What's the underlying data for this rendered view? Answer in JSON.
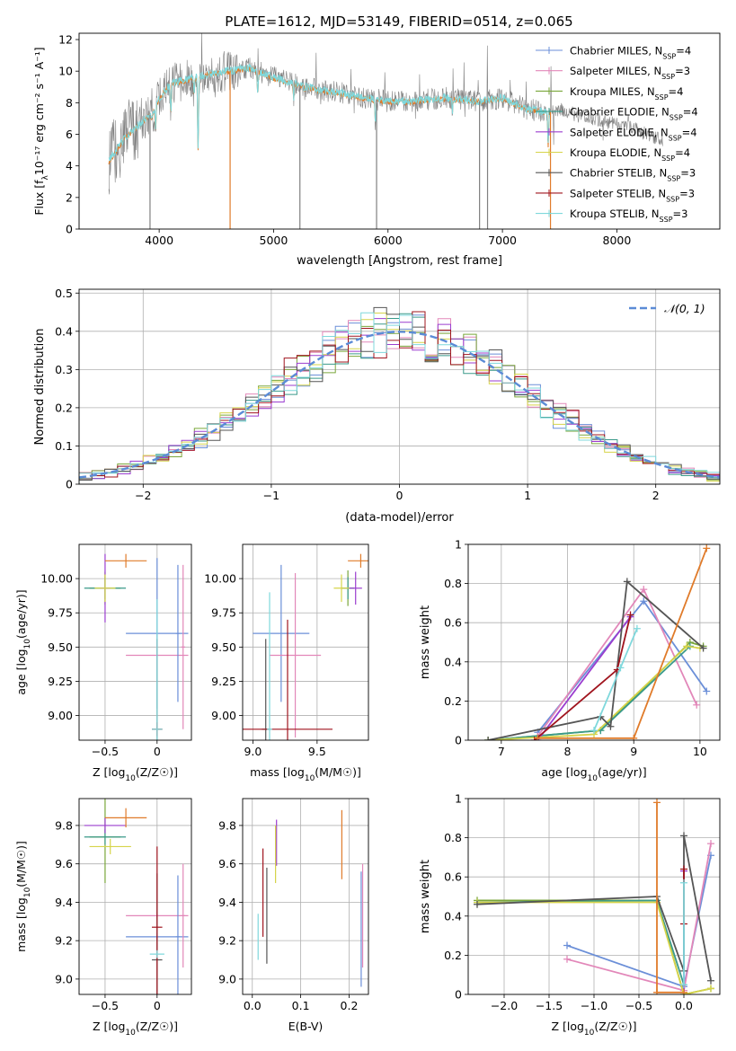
{
  "figure": {
    "title": "PLATE=1612, MJD=53149, FIBERID=0514, z=0.065"
  },
  "series_styles": [
    {
      "name": "Chabrier MILES",
      "nssp": "4",
      "color": "#6b8fd8"
    },
    {
      "name": "Salpeter MILES",
      "nssp": "3",
      "color": "#e287b9"
    },
    {
      "name": "Kroupa MILES",
      "nssp": "4",
      "color": "#7aa63b"
    },
    {
      "name": "Chabrier ELODIE",
      "nssp": "4",
      "color": "#3a9a8a"
    },
    {
      "name": "Salpeter ELODIE",
      "nssp": "4",
      "color": "#9b3dcf"
    },
    {
      "name": "Kroupa ELODIE",
      "nssp": "4",
      "color": "#d6d44a"
    },
    {
      "name": "Chabrier STELIB",
      "nssp": "3",
      "color": "#555555"
    },
    {
      "name": "Salpeter STELIB",
      "nssp": "3",
      "color": "#a0141e"
    },
    {
      "name": "Kroupa STELIB",
      "nssp": "3",
      "color": "#7fd8dc"
    }
  ],
  "chart_data": [
    {
      "id": "spectrum",
      "type": "line",
      "xlabel": "wavelength [Angstrom, rest frame]",
      "ylabel_main": "Flux [f",
      "ylabel_sub": "λ",
      "ylabel_rest": "10⁻¹⁷ erg cm⁻² s⁻¹ A⁻¹]",
      "xlim": [
        3300,
        8900
      ],
      "ylim": [
        0,
        12.4
      ],
      "xticks": [
        4000,
        5000,
        6000,
        7000,
        8000
      ],
      "yticks": [
        0,
        2,
        4,
        6,
        8,
        10,
        12
      ],
      "legend_position": "top-right",
      "legend_suffix": "N",
      "legend_sub": "SSP",
      "data_color": "#808080",
      "model_color": "#7fd8dc",
      "accent_color": "#e07b2a",
      "anchors": [
        [
          3560,
          4.3
        ],
        [
          3700,
          5.8
        ],
        [
          3850,
          6.8
        ],
        [
          3950,
          7.4
        ],
        [
          4000,
          8.3
        ],
        [
          4100,
          9.2
        ],
        [
          4300,
          9.6
        ],
        [
          4500,
          9.9
        ],
        [
          4800,
          10.2
        ],
        [
          5000,
          9.6
        ],
        [
          5200,
          9.2
        ],
        [
          5400,
          8.8
        ],
        [
          5600,
          8.6
        ],
        [
          5800,
          8.3
        ],
        [
          6000,
          8.1
        ],
        [
          6200,
          8.1
        ],
        [
          6500,
          8.3
        ],
        [
          6800,
          8.1
        ],
        [
          7000,
          8.3
        ],
        [
          7200,
          7.6
        ],
        [
          7420,
          7.4
        ],
        [
          7500,
          7.6
        ],
        [
          7700,
          7.1
        ],
        [
          7900,
          6.8
        ],
        [
          8100,
          6.5
        ],
        [
          8300,
          5.9
        ],
        [
          8400,
          5.6
        ]
      ],
      "absorption_lines": [
        [
          3934,
          7.1
        ],
        [
          3969,
          6.4
        ],
        [
          4102,
          7.3
        ],
        [
          4305,
          8.5
        ],
        [
          4340,
          5.0
        ],
        [
          4861,
          8.6
        ],
        [
          5175,
          8.3
        ],
        [
          5270,
          8.6
        ],
        [
          5890,
          6.8
        ],
        [
          6563,
          7.5
        ],
        [
          7400,
          5.4
        ]
      ],
      "spikes": [
        [
          3920,
          0
        ],
        [
          4620,
          0
        ],
        [
          5230,
          0
        ],
        [
          5900,
          0
        ],
        [
          6800,
          0
        ],
        [
          6870,
          0
        ],
        [
          7420,
          0
        ]
      ]
    },
    {
      "id": "residuals",
      "type": "bar",
      "xlabel": "(data-model)/error",
      "ylabel": "Normed distribution",
      "xlim": [
        -2.5,
        2.5
      ],
      "ylim": [
        0,
        0.51
      ],
      "xticks": [
        -2,
        -1,
        0,
        1,
        2
      ],
      "yticks": [
        0.0,
        0.1,
        0.2,
        0.3,
        0.4,
        0.5
      ],
      "legend_entry": "𝒩(0, 1)",
      "legend_position": "top-right",
      "gaussian_color": "#5b8bd6",
      "bin_width": 0.1,
      "grid": true
    },
    {
      "id": "age_vs_Z",
      "type": "scatter",
      "xlabel_main": "Z [log",
      "xlabel_sub": "10",
      "xlabel_rest": "(Z/Z☉)]",
      "ylabel_main": "age  [log",
      "ylabel_sub": "10",
      "ylabel_rest": "(age/yr)]",
      "xlim": [
        -0.75,
        0.33
      ],
      "ylim": [
        8.82,
        10.25
      ],
      "xticks": [
        -0.5,
        0.0
      ],
      "ytick_labels": [
        "9.00",
        "9.25",
        "9.50",
        "9.75",
        "10.00"
      ],
      "yticks": [
        9.0,
        9.25,
        9.5,
        9.75,
        10.0
      ],
      "points": [
        {
          "x": 0.0,
          "y": 9.6,
          "xerr": 0.3,
          "yerr": 0.55,
          "color": "#6b8fd8"
        },
        {
          "x": 0.0,
          "y": 9.44,
          "xerr": 0.3,
          "yerr": 0.1,
          "color": "#e287b9"
        },
        {
          "x": -0.5,
          "y": 9.93,
          "xerr": 0.15,
          "yerr": 0.12,
          "color": "#7aa63b"
        },
        {
          "x": -0.5,
          "y": 9.93,
          "xerr": 0.2,
          "yerr": 0.08,
          "color": "#3a9a8a"
        },
        {
          "x": -0.5,
          "y": 9.93,
          "xerr": 0.05,
          "yerr": 0.25,
          "color": "#9b3dcf"
        },
        {
          "x": -0.5,
          "y": 9.93,
          "xerr": 0.1,
          "yerr": 0.1,
          "color": "#d6d44a"
        },
        {
          "x": 0.0,
          "y": 8.9,
          "xerr": 0.05,
          "yerr": 0.66,
          "color": "#555555"
        },
        {
          "x": 0.0,
          "y": 8.9,
          "xerr": 0.05,
          "yerr": 0.05,
          "color": "#a0141e"
        },
        {
          "x": 0.0,
          "y": 8.9,
          "xerr": 0.05,
          "yerr": 0.95,
          "color": "#7fd8dc"
        },
        {
          "x": -0.3,
          "y": 10.13,
          "xerr": 0.2,
          "yerr": 0.05,
          "color": "#e07b2a"
        },
        {
          "x": 0.2,
          "y": 9.6,
          "xerr": 0.02,
          "yerr": 0.5,
          "color": "#6b8fd8"
        },
        {
          "x": 0.25,
          "y": 9.5,
          "xerr": 0.02,
          "yerr": 0.6,
          "color": "#e287b9"
        }
      ]
    },
    {
      "id": "age_vs_mass",
      "type": "scatter",
      "xlabel_main": "mass [log",
      "xlabel_sub": "10",
      "xlabel_rest": "(M/M☉)]",
      "ylabel_main": "",
      "ylabel_sub": "",
      "ylabel_rest": "",
      "xlim": [
        8.92,
        9.9
      ],
      "ylim": [
        8.82,
        10.25
      ],
      "xticks": [
        9.0,
        9.5
      ],
      "xtick_labels": [
        "9.0",
        "9.5"
      ],
      "yticks": [
        9.0,
        9.25,
        9.5,
        9.75,
        10.0
      ],
      "ytick_labels": [
        "9.00",
        "9.25",
        "9.50",
        "9.75",
        "10.00"
      ],
      "points": [
        {
          "x": 9.22,
          "y": 9.6,
          "xerr": 0.22,
          "yerr": 0.5,
          "color": "#6b8fd8"
        },
        {
          "x": 9.33,
          "y": 9.44,
          "xerr": 0.2,
          "yerr": 0.6,
          "color": "#e287b9"
        },
        {
          "x": 9.74,
          "y": 9.93,
          "xerr": 0.05,
          "yerr": 0.13,
          "color": "#7aa63b"
        },
        {
          "x": 9.74,
          "y": 9.93,
          "xerr": 0.05,
          "yerr": 0.08,
          "color": "#3a9a8a"
        },
        {
          "x": 9.8,
          "y": 9.93,
          "xerr": 0.05,
          "yerr": 0.12,
          "color": "#9b3dcf"
        },
        {
          "x": 9.69,
          "y": 9.93,
          "xerr": 0.06,
          "yerr": 0.1,
          "color": "#d6d44a"
        },
        {
          "x": 9.1,
          "y": 8.9,
          "xerr": 0.03,
          "yerr": 0.66,
          "color": "#555555"
        },
        {
          "x": 9.27,
          "y": 8.9,
          "xerr": 0.35,
          "yerr": 0.8,
          "color": "#a0141e"
        },
        {
          "x": 9.13,
          "y": 8.9,
          "xerr": 0.02,
          "yerr": 1.0,
          "color": "#7fd8dc"
        },
        {
          "x": 9.84,
          "y": 10.13,
          "xerr": 0.1,
          "yerr": 0.05,
          "color": "#e07b2a"
        }
      ]
    },
    {
      "id": "massweight_vs_age",
      "type": "line",
      "xlabel_main": "age  [log",
      "xlabel_sub": "10",
      "xlabel_rest": "(age/yr)]",
      "ylabel": "mass weight",
      "xlim": [
        6.5,
        10.3
      ],
      "ylim": [
        0,
        1.0
      ],
      "xticks": [
        7,
        8,
        9,
        10
      ],
      "yticks": [
        0.0,
        0.2,
        0.4,
        0.6,
        0.8,
        1.0
      ],
      "series": [
        {
          "color": "#6b8fd8",
          "x": [
            7.55,
            9.15,
            10.1
          ],
          "y": [
            0.04,
            0.71,
            0.25
          ]
        },
        {
          "color": "#e287b9",
          "x": [
            7.55,
            9.15,
            9.95
          ],
          "y": [
            0.02,
            0.77,
            0.18
          ]
        },
        {
          "color": "#7aa63b",
          "x": [
            6.8,
            8.5,
            9.85,
            10.05
          ],
          "y": [
            0.0,
            0.05,
            0.5,
            0.48
          ]
        },
        {
          "color": "#3a9a8a",
          "x": [
            6.8,
            8.5,
            9.85
          ],
          "y": [
            0.0,
            0.05,
            0.48
          ]
        },
        {
          "color": "#9b3dcf",
          "x": [
            7.55,
            8.95
          ],
          "y": [
            0.0,
            0.63
          ]
        },
        {
          "color": "#d6d44a",
          "x": [
            6.8,
            8.4,
            9.8,
            10.0
          ],
          "y": [
            0.0,
            0.03,
            0.48,
            0.47
          ]
        },
        {
          "color": "#555555",
          "x": [
            6.8,
            8.5,
            8.65,
            8.9,
            10.05
          ],
          "y": [
            0.0,
            0.12,
            0.07,
            0.81,
            0.47
          ]
        },
        {
          "color": "#a0141e",
          "x": [
            7.5,
            8.75,
            8.95
          ],
          "y": [
            0.0,
            0.36,
            0.64
          ]
        },
        {
          "color": "#7fd8dc",
          "x": [
            8.4,
            8.8,
            9.05
          ],
          "y": [
            0.05,
            0.37,
            0.57
          ]
        },
        {
          "color": "#e07b2a",
          "x": [
            7.55,
            9.0,
            10.1
          ],
          "y": [
            0.01,
            0.01,
            0.98
          ]
        }
      ]
    },
    {
      "id": "mass_vs_Z",
      "type": "scatter",
      "xlabel_main": "Z [log",
      "xlabel_sub": "10",
      "xlabel_rest": "(Z/Z☉)]",
      "ylabel_main": "mass [log",
      "ylabel_sub": "10",
      "ylabel_rest": "(M/M☉)]",
      "xlim": [
        -0.75,
        0.33
      ],
      "ylim": [
        8.92,
        9.94
      ],
      "xticks": [
        -0.5,
        0.0
      ],
      "yticks": [
        9.0,
        9.2,
        9.4,
        9.6,
        9.8
      ],
      "ytick_labels": [
        "9.0",
        "9.2",
        "9.4",
        "9.6",
        "9.8"
      ],
      "points": [
        {
          "x": 0.0,
          "y": 9.22,
          "xerr": 0.3,
          "yerr": 0.02,
          "color": "#6b8fd8"
        },
        {
          "x": 0.0,
          "y": 9.33,
          "xerr": 0.3,
          "yerr": 0.02,
          "color": "#e287b9"
        },
        {
          "x": -0.5,
          "y": 9.74,
          "xerr": 0.15,
          "yerr": 0.24,
          "color": "#7aa63b"
        },
        {
          "x": -0.5,
          "y": 9.74,
          "xerr": 0.2,
          "yerr": 0.04,
          "color": "#3a9a8a"
        },
        {
          "x": -0.5,
          "y": 9.8,
          "xerr": 0.2,
          "yerr": 0.04,
          "color": "#9b3dcf"
        },
        {
          "x": -0.45,
          "y": 9.69,
          "xerr": 0.2,
          "yerr": 0.04,
          "color": "#d6d44a"
        },
        {
          "x": 0.0,
          "y": 9.1,
          "xerr": 0.05,
          "yerr": 0.45,
          "color": "#555555"
        },
        {
          "x": 0.0,
          "y": 9.27,
          "xerr": 0.05,
          "yerr": 0.42,
          "color": "#a0141e"
        },
        {
          "x": 0.0,
          "y": 9.13,
          "xerr": 0.07,
          "yerr": 0.02,
          "color": "#7fd8dc"
        },
        {
          "x": -0.3,
          "y": 9.84,
          "xerr": 0.2,
          "yerr": 0.05,
          "color": "#e07b2a"
        },
        {
          "x": 0.2,
          "y": 9.22,
          "xerr": 0.02,
          "yerr": 0.32,
          "color": "#6b8fd8"
        },
        {
          "x": 0.25,
          "y": 9.33,
          "xerr": 0.02,
          "yerr": 0.27,
          "color": "#e287b9"
        }
      ]
    },
    {
      "id": "mass_vs_ebv",
      "type": "scatter",
      "xlabel_main": "E(B-V)",
      "xlabel_sub": "",
      "xlabel_rest": "",
      "ylabel_main": "",
      "ylabel_sub": "",
      "ylabel_rest": "",
      "xlim": [
        -0.02,
        0.24
      ],
      "ylim": [
        8.92,
        9.94
      ],
      "xticks": [
        0.0,
        0.1,
        0.2
      ],
      "xtick_labels": [
        "0.0",
        "0.1",
        "0.2"
      ],
      "yticks": [
        9.0,
        9.2,
        9.4,
        9.6,
        9.8
      ],
      "ytick_labels": [
        "9.0",
        "9.2",
        "9.4",
        "9.6",
        "9.8"
      ],
      "points": [
        {
          "x": 0.225,
          "y": 9.26,
          "xerr": 0.0,
          "yerr": 0.3,
          "color": "#6b8fd8"
        },
        {
          "x": 0.228,
          "y": 9.33,
          "xerr": 0.0,
          "yerr": 0.27,
          "color": "#e287b9"
        },
        {
          "x": 0.05,
          "y": 9.71,
          "xerr": 0.0,
          "yerr": 0.12,
          "color": "#9b3dcf"
        },
        {
          "x": 0.048,
          "y": 9.65,
          "xerr": 0.0,
          "yerr": 0.15,
          "color": "#d6d44a"
        },
        {
          "x": 0.03,
          "y": 9.33,
          "xerr": 0.0,
          "yerr": 0.25,
          "color": "#555555"
        },
        {
          "x": 0.022,
          "y": 9.45,
          "xerr": 0.0,
          "yerr": 0.23,
          "color": "#a0141e"
        },
        {
          "x": 0.012,
          "y": 9.22,
          "xerr": 0.0,
          "yerr": 0.12,
          "color": "#7fd8dc"
        },
        {
          "x": 0.185,
          "y": 9.7,
          "xerr": 0.0,
          "yerr": 0.18,
          "color": "#e07b2a"
        }
      ]
    },
    {
      "id": "massweight_vs_Z",
      "type": "line",
      "xlabel_main": "Z [log",
      "xlabel_sub": "10",
      "xlabel_rest": "(Z/Z☉)]",
      "ylabel": "mass weight",
      "xlim": [
        -2.4,
        0.4
      ],
      "ylim": [
        0,
        1.0
      ],
      "xticks": [
        -2.0,
        -1.5,
        -1.0,
        -0.5,
        0.0
      ],
      "xtick_labels": [
        "−2.0",
        "−1.5",
        "−1.0",
        "−0.5",
        "0.0"
      ],
      "yticks": [
        0.0,
        0.2,
        0.4,
        0.6,
        0.8,
        1.0
      ],
      "series": [
        {
          "color": "#6b8fd8",
          "x": [
            -1.3,
            0.0,
            0.3
          ],
          "y": [
            0.25,
            0.04,
            0.71
          ]
        },
        {
          "color": "#e287b9",
          "x": [
            -1.3,
            0.0,
            0.3
          ],
          "y": [
            0.18,
            0.02,
            0.77
          ]
        },
        {
          "color": "#7aa63b",
          "x": [
            -2.3,
            -0.3,
            0.0,
            0.3
          ],
          "y": [
            0.48,
            0.48,
            0.0,
            0.03
          ]
        },
        {
          "color": "#3a9a8a",
          "x": [
            -2.3,
            -0.3,
            0.0
          ],
          "y": [
            0.47,
            0.48,
            0.05
          ]
        },
        {
          "color": "#9b3dcf",
          "x": [
            0.0,
            0.0
          ],
          "y": [
            0.0,
            0.63
          ]
        },
        {
          "color": "#d6d44a",
          "x": [
            -2.3,
            -0.3,
            0.0,
            0.3
          ],
          "y": [
            0.47,
            0.47,
            0.0,
            0.03
          ]
        },
        {
          "color": "#555555",
          "x": [
            -2.3,
            -0.3,
            0.0,
            0.0,
            0.3
          ],
          "y": [
            0.46,
            0.5,
            0.12,
            0.81,
            0.07
          ]
        },
        {
          "color": "#a0141e",
          "x": [
            0.0,
            0.0
          ],
          "y": [
            0.36,
            0.64
          ]
        },
        {
          "color": "#7fd8dc",
          "x": [
            0.0,
            0.0
          ],
          "y": [
            0.05,
            0.57
          ]
        },
        {
          "color": "#e07b2a",
          "x": [
            -0.3,
            -0.3,
            0.0
          ],
          "y": [
            0.98,
            0.01,
            0.01
          ]
        }
      ]
    }
  ]
}
